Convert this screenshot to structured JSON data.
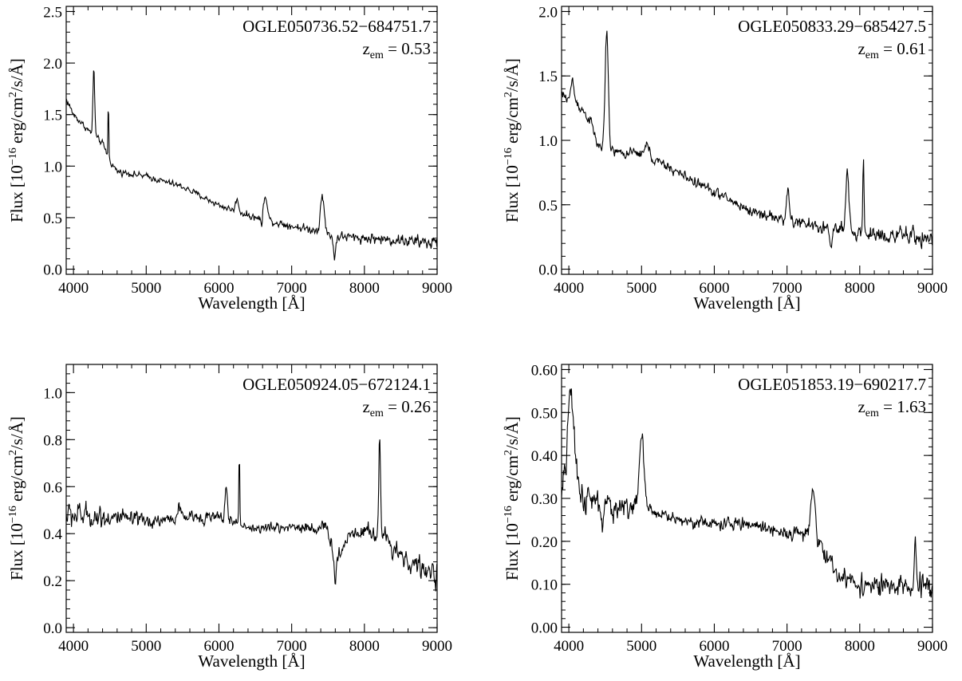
{
  "chart_data": [
    {
      "type": "line",
      "name_label": "OGLE050736.52−684751.7",
      "z_prefix": "z",
      "z_sub": "em",
      "z_value": " = 0.53",
      "xlabel": "Wavelength [Å]",
      "ylabel": "Flux [10^-16 erg/cm^2/s/Å]",
      "xlim": [
        3900,
        9000
      ],
      "ylim": [
        -0.05,
        2.55
      ],
      "xticks": [
        4000,
        5000,
        6000,
        7000,
        8000,
        9000
      ],
      "yticks": [
        0.0,
        0.5,
        1.0,
        1.5,
        2.0,
        2.5
      ],
      "ytick_decimals": 1,
      "grid": false,
      "continuum": [
        [
          3900,
          1.65
        ],
        [
          4000,
          1.5
        ],
        [
          4200,
          1.35
        ],
        [
          4400,
          1.22
        ],
        [
          4500,
          1.05
        ],
        [
          4600,
          0.95
        ],
        [
          5000,
          0.9
        ],
        [
          5500,
          0.8
        ],
        [
          6000,
          0.62
        ],
        [
          6500,
          0.5
        ],
        [
          7000,
          0.42
        ],
        [
          7300,
          0.38
        ],
        [
          7600,
          0.32
        ],
        [
          8000,
          0.3
        ],
        [
          8500,
          0.28
        ],
        [
          9000,
          0.25
        ]
      ],
      "features": [
        [
          4280,
          0.65,
          12
        ],
        [
          4480,
          0.6,
          5
        ],
        [
          6250,
          0.12,
          20
        ],
        [
          6640,
          0.25,
          25
        ],
        [
          7420,
          0.38,
          25
        ],
        [
          7590,
          -0.22,
          15
        ],
        [
          6590,
          -0.12,
          8
        ]
      ],
      "noise": [
        [
          3900,
          0.03
        ],
        [
          6000,
          0.03
        ],
        [
          8000,
          0.05
        ],
        [
          9000,
          0.07
        ]
      ]
    },
    {
      "type": "line",
      "name_label": "OGLE050833.29−685427.5",
      "z_prefix": "z",
      "z_sub": "em",
      "z_value": " = 0.61",
      "xlabel": "Wavelength [Å]",
      "ylabel": "Flux [10^-16 erg/cm^2/s/Å]",
      "xlim": [
        3900,
        9000
      ],
      "ylim": [
        -0.04,
        2.04
      ],
      "xticks": [
        4000,
        5000,
        6000,
        7000,
        8000,
        9000
      ],
      "yticks": [
        0.0,
        0.5,
        1.0,
        1.5,
        2.0
      ],
      "ytick_decimals": 1,
      "grid": false,
      "continuum": [
        [
          3900,
          1.35
        ],
        [
          4100,
          1.3
        ],
        [
          4300,
          1.15
        ],
        [
          4400,
          0.95
        ],
        [
          4700,
          0.9
        ],
        [
          5000,
          0.9
        ],
        [
          5500,
          0.75
        ],
        [
          6000,
          0.6
        ],
        [
          6500,
          0.45
        ],
        [
          7000,
          0.38
        ],
        [
          7500,
          0.32
        ],
        [
          8000,
          0.28
        ],
        [
          8500,
          0.26
        ],
        [
          9000,
          0.24
        ]
      ],
      "features": [
        [
          4050,
          0.15,
          20
        ],
        [
          4520,
          0.9,
          22
        ],
        [
          5080,
          0.1,
          25
        ],
        [
          7010,
          0.2,
          22
        ],
        [
          7830,
          0.45,
          20
        ],
        [
          8050,
          0.62,
          8
        ],
        [
          7600,
          -0.15,
          15
        ]
      ],
      "noise": [
        [
          3900,
          0.04
        ],
        [
          6000,
          0.04
        ],
        [
          8000,
          0.06
        ],
        [
          9000,
          0.08
        ]
      ]
    },
    {
      "type": "line",
      "name_label": "OGLE050924.05−672124.1",
      "z_prefix": "z",
      "z_sub": "em",
      "z_value": " = 0.26",
      "xlabel": "Wavelength [Å]",
      "ylabel": "Flux [10^-16 erg/cm^2/s/Å]",
      "xlim": [
        3900,
        9000
      ],
      "ylim": [
        -0.02,
        1.12
      ],
      "xticks": [
        4000,
        5000,
        6000,
        7000,
        8000,
        9000
      ],
      "yticks": [
        0.0,
        0.2,
        0.4,
        0.6,
        0.8,
        1.0
      ],
      "ytick_decimals": 1,
      "grid": false,
      "continuum": [
        [
          3900,
          0.48
        ],
        [
          4500,
          0.47
        ],
        [
          5000,
          0.45
        ],
        [
          5500,
          0.47
        ],
        [
          6000,
          0.47
        ],
        [
          6500,
          0.42
        ],
        [
          7000,
          0.43
        ],
        [
          7500,
          0.42
        ],
        [
          7600,
          0.28
        ],
        [
          7800,
          0.4
        ],
        [
          8000,
          0.42
        ],
        [
          8300,
          0.38
        ],
        [
          8600,
          0.28
        ],
        [
          9000,
          0.22
        ]
      ],
      "features": [
        [
          6100,
          0.15,
          15
        ],
        [
          6280,
          0.32,
          6
        ],
        [
          8210,
          0.42,
          12
        ],
        [
          5450,
          0.05,
          15
        ],
        [
          7600,
          -0.1,
          12
        ]
      ],
      "noise": [
        [
          3900,
          0.06
        ],
        [
          4300,
          0.05
        ],
        [
          5000,
          0.03
        ],
        [
          6500,
          0.02
        ],
        [
          7500,
          0.03
        ],
        [
          8000,
          0.04
        ],
        [
          9000,
          0.05
        ]
      ]
    },
    {
      "type": "line",
      "name_label": "OGLE051853.19−690217.7",
      "z_prefix": "z",
      "z_sub": "em",
      "z_value": " = 1.63",
      "xlabel": "Wavelength [Å]",
      "ylabel": "Flux [10^-16 erg/cm^2/s/Å]",
      "xlim": [
        3900,
        9000
      ],
      "ylim": [
        -0.012,
        0.612
      ],
      "xticks": [
        4000,
        5000,
        6000,
        7000,
        8000,
        9000
      ],
      "yticks": [
        0.0,
        0.1,
        0.2,
        0.3,
        0.4,
        0.5,
        0.6
      ],
      "ytick_decimals": 2,
      "grid": false,
      "continuum": [
        [
          3900,
          0.3
        ],
        [
          4000,
          0.4
        ],
        [
          4200,
          0.3
        ],
        [
          4500,
          0.28
        ],
        [
          5000,
          0.28
        ],
        [
          5500,
          0.25
        ],
        [
          6000,
          0.24
        ],
        [
          6500,
          0.24
        ],
        [
          7000,
          0.22
        ],
        [
          7300,
          0.22
        ],
        [
          7500,
          0.18
        ],
        [
          7700,
          0.12
        ],
        [
          8000,
          0.1
        ],
        [
          8500,
          0.09
        ],
        [
          9000,
          0.1
        ]
      ],
      "features": [
        [
          4020,
          0.16,
          40
        ],
        [
          5000,
          0.17,
          30
        ],
        [
          7360,
          0.1,
          30
        ],
        [
          8760,
          0.1,
          10
        ],
        [
          4460,
          -0.07,
          10
        ],
        [
          3960,
          -0.1,
          8
        ]
      ],
      "noise": [
        [
          3900,
          0.04
        ],
        [
          4600,
          0.03
        ],
        [
          5200,
          0.015
        ],
        [
          7000,
          0.015
        ],
        [
          8000,
          0.025
        ],
        [
          9000,
          0.03
        ]
      ]
    }
  ]
}
